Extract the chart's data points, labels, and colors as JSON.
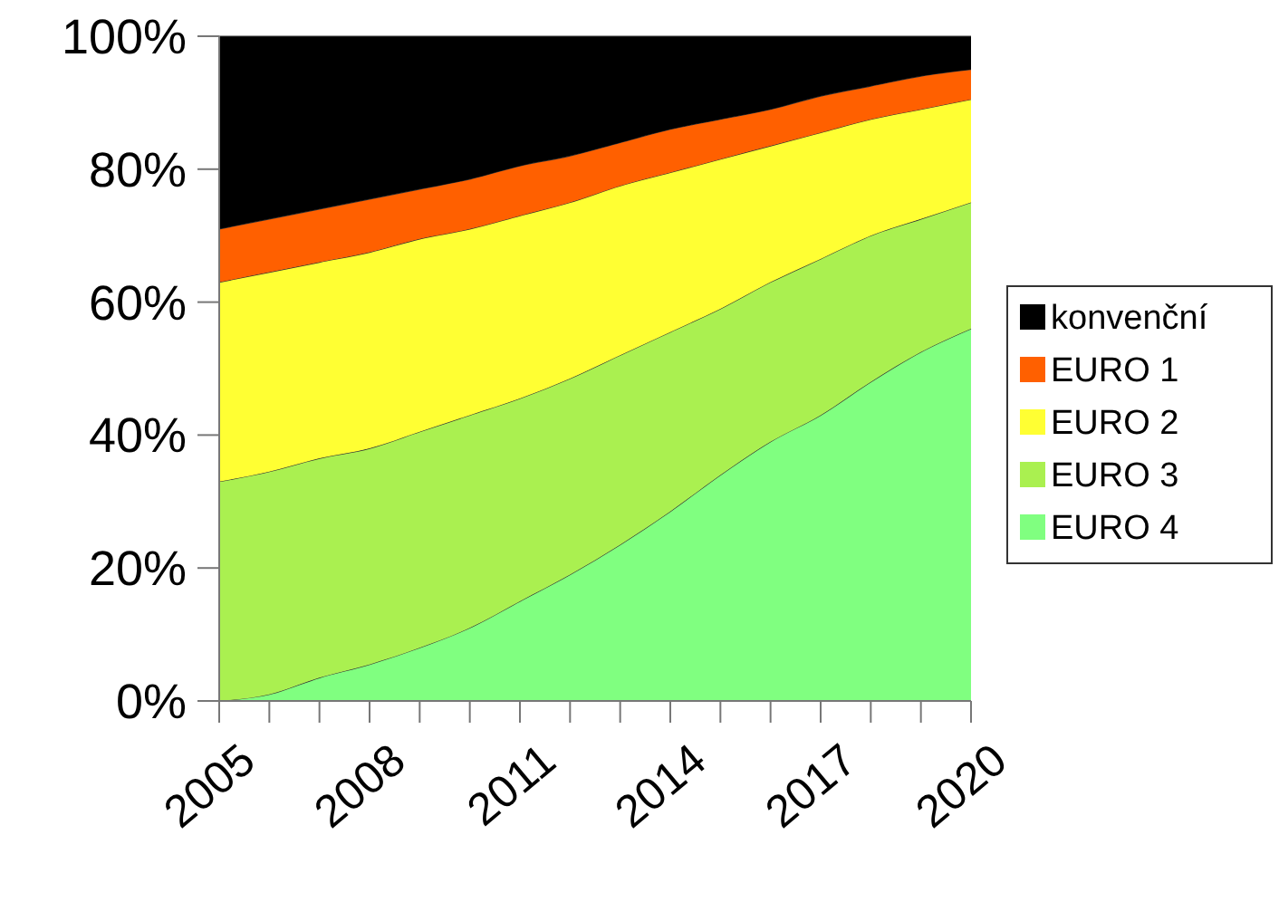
{
  "chart_data": {
    "type": "area",
    "stacked": true,
    "legend": "right",
    "grid": false,
    "x": [
      2005,
      2006,
      2007,
      2008,
      2009,
      2010,
      2011,
      2012,
      2013,
      2014,
      2015,
      2016,
      2017,
      2018,
      2019,
      2020
    ],
    "xlim": [
      2005,
      2020
    ],
    "xticks": [
      2005,
      {
        "value": 2006,
        "label": null
      },
      {
        "value": 2007,
        "label": null
      },
      2008,
      {
        "value": 2009,
        "label": null
      },
      {
        "value": 2010,
        "label": null
      },
      2011,
      {
        "value": 2012,
        "label": null
      },
      {
        "value": 2013,
        "label": null
      },
      2014,
      {
        "value": 2015,
        "label": null
      },
      {
        "value": 2016,
        "label": null
      },
      2017,
      {
        "value": 2018,
        "label": null
      },
      {
        "value": 2019,
        "label": null
      },
      2020
    ],
    "ylim": [
      0,
      100
    ],
    "yticks": [
      {
        "value": 0,
        "label": "0%"
      },
      {
        "value": 20,
        "label": "20%"
      },
      {
        "value": 40,
        "label": "40%"
      },
      {
        "value": 60,
        "label": "60%"
      },
      {
        "value": 80,
        "label": "80%"
      },
      {
        "value": 100,
        "label": "100%"
      }
    ],
    "series": [
      {
        "name": "EURO 4",
        "color": "#80ff80",
        "values": [
          0,
          1,
          3.5,
          5.5,
          8,
          11,
          15,
          19,
          23.5,
          28.5,
          34,
          39,
          43,
          48,
          52.5,
          56
        ]
      },
      {
        "name": "EURO 3",
        "color": "#aaf050",
        "values": [
          33,
          33.5,
          33,
          32.5,
          32.5,
          32,
          30.5,
          29.5,
          28.5,
          27,
          25,
          24,
          23.5,
          22,
          20,
          19
        ]
      },
      {
        "name": "EURO 2",
        "color": "#ffff33",
        "values": [
          30,
          30,
          29.5,
          29.5,
          29,
          28,
          27.5,
          26.5,
          25.5,
          24,
          22.5,
          20.5,
          19,
          17.5,
          16.5,
          15.5
        ]
      },
      {
        "name": "EURO 1",
        "color": "#ff6000",
        "values": [
          8,
          8,
          8,
          8,
          7.5,
          7.5,
          7.5,
          7,
          6.5,
          6.5,
          6,
          5.5,
          5.5,
          5,
          5,
          4.5
        ]
      },
      {
        "name": "konvenční",
        "color": "#000000",
        "values": [
          29,
          27.5,
          26,
          24.5,
          23,
          21.5,
          19.5,
          18,
          16,
          14,
          12.5,
          11,
          9,
          7.5,
          6,
          5
        ]
      }
    ]
  }
}
